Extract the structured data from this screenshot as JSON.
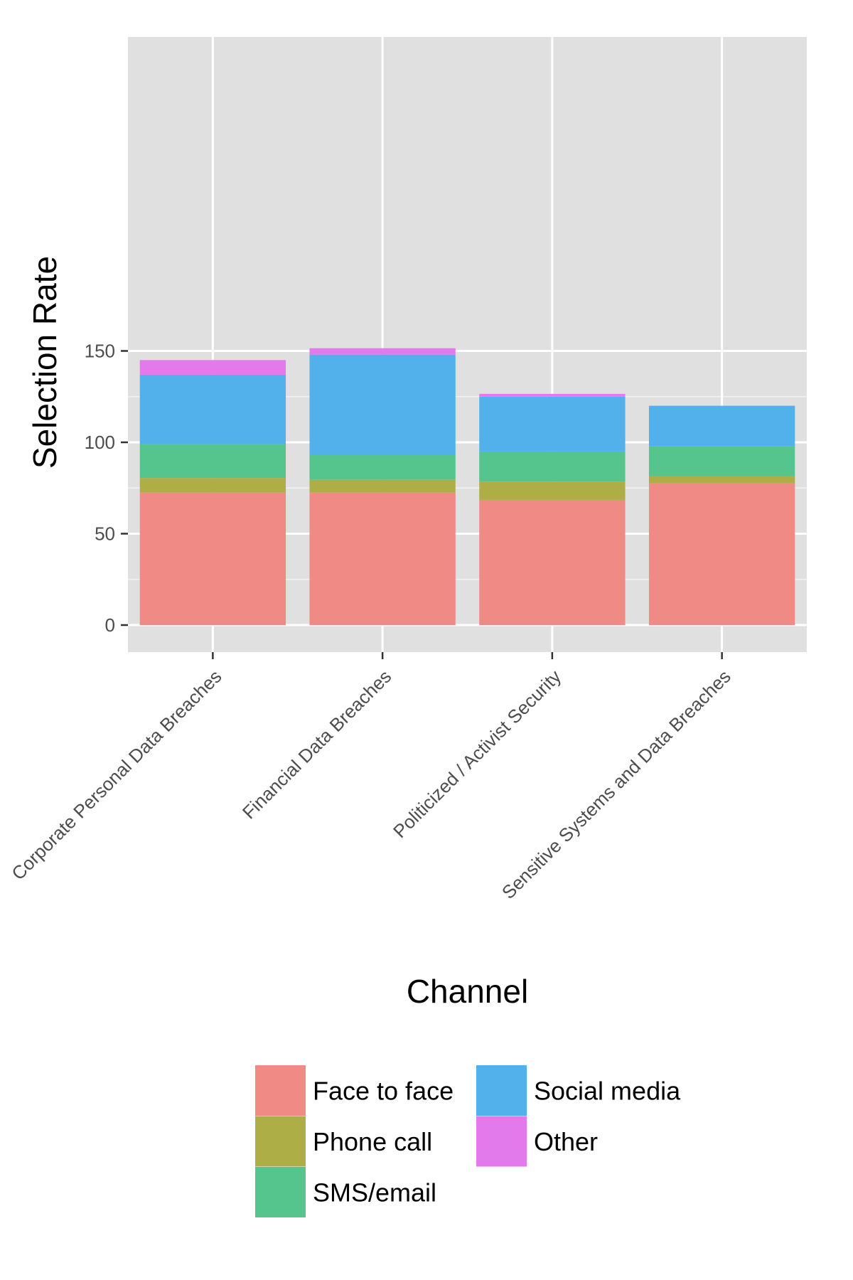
{
  "chart_data": {
    "type": "bar",
    "stacked": true,
    "xlabel": "Channel",
    "ylabel": "Selection Rate",
    "ylim": [
      0,
      158
    ],
    "yticks": [
      0,
      50,
      100,
      150
    ],
    "grid": true,
    "legend_position": "bottom",
    "categories": [
      "Corporate Personal Data Breaches",
      "Financial Data Breaches",
      "Politicized / Activist Security",
      "Sensitive Systems and Data Breaches"
    ],
    "series": [
      {
        "name": "Face to face",
        "color": "#F08A84",
        "values": [
          72.5,
          72.5,
          68.5,
          77.5
        ]
      },
      {
        "name": "Phone call",
        "color": "#AEAE47",
        "values": [
          8,
          7,
          10,
          4
        ]
      },
      {
        "name": "SMS/email",
        "color": "#55C58D",
        "values": [
          18.5,
          13.5,
          16.5,
          16.5
        ]
      },
      {
        "name": "Social media",
        "color": "#52B1EB",
        "values": [
          38,
          55,
          30,
          22
        ]
      },
      {
        "name": "Other",
        "color": "#E27AEB",
        "values": [
          8,
          3.5,
          1.5,
          0
        ]
      }
    ]
  }
}
